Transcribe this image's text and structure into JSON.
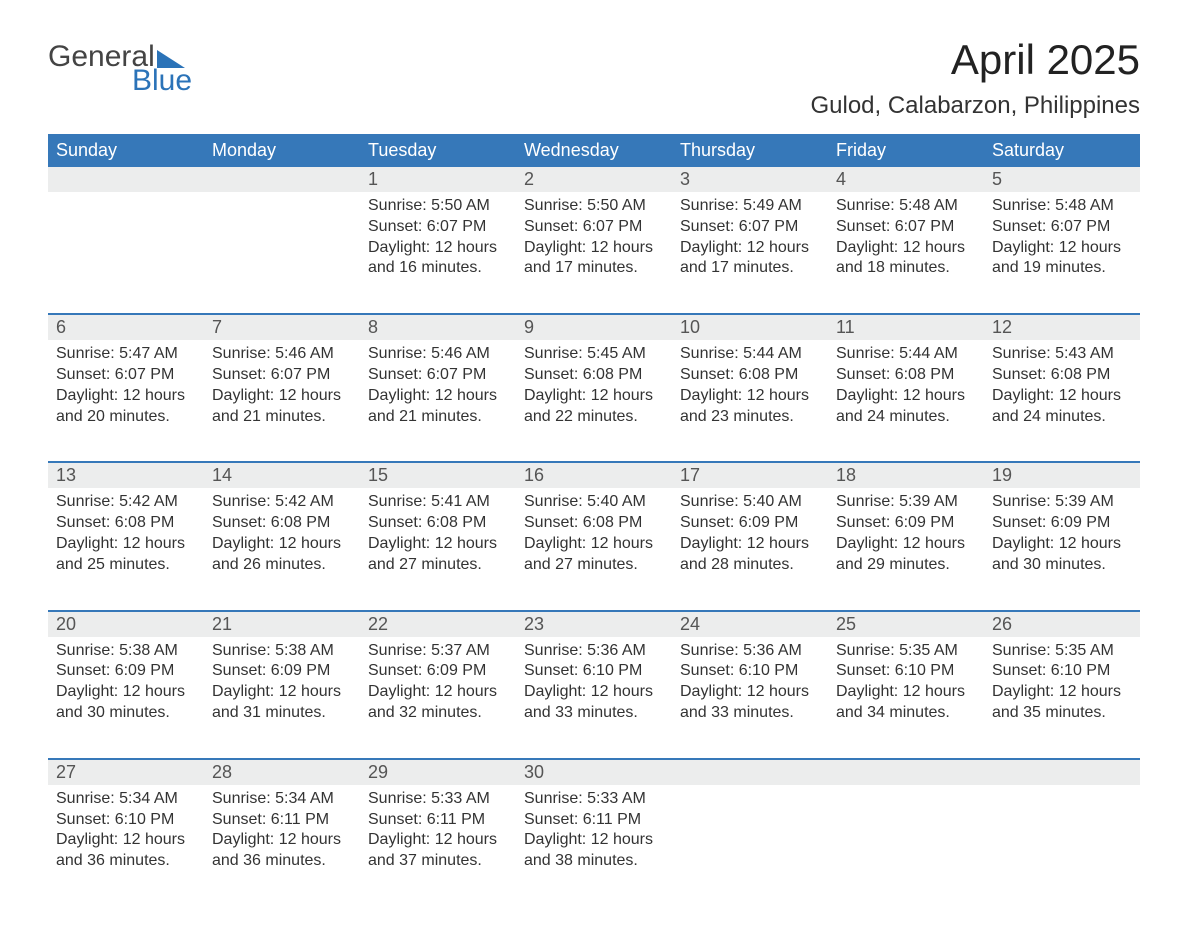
{
  "logo": {
    "general": "General",
    "blue": "Blue"
  },
  "title": "April 2025",
  "subtitle": "Gulod, Calabarzon, Philippines",
  "colors": {
    "header_bg": "#3678b9",
    "header_text": "#ffffff",
    "daynum_bg": "#eceded",
    "daynum_text": "#555555",
    "body_text": "#333333",
    "rule": "#3678b9",
    "logo_accent": "#2b73b8",
    "page_bg": "#ffffff"
  },
  "typography": {
    "title_fontsize": 42,
    "subtitle_fontsize": 24,
    "dow_fontsize": 18,
    "daynum_fontsize": 18,
    "body_fontsize": 16
  },
  "days_of_week": [
    "Sunday",
    "Monday",
    "Tuesday",
    "Wednesday",
    "Thursday",
    "Friday",
    "Saturday"
  ],
  "weeks": [
    [
      null,
      null,
      {
        "n": "1",
        "sunrise": "Sunrise: 5:50 AM",
        "sunset": "Sunset: 6:07 PM",
        "d1": "Daylight: 12 hours",
        "d2": "and 16 minutes."
      },
      {
        "n": "2",
        "sunrise": "Sunrise: 5:50 AM",
        "sunset": "Sunset: 6:07 PM",
        "d1": "Daylight: 12 hours",
        "d2": "and 17 minutes."
      },
      {
        "n": "3",
        "sunrise": "Sunrise: 5:49 AM",
        "sunset": "Sunset: 6:07 PM",
        "d1": "Daylight: 12 hours",
        "d2": "and 17 minutes."
      },
      {
        "n": "4",
        "sunrise": "Sunrise: 5:48 AM",
        "sunset": "Sunset: 6:07 PM",
        "d1": "Daylight: 12 hours",
        "d2": "and 18 minutes."
      },
      {
        "n": "5",
        "sunrise": "Sunrise: 5:48 AM",
        "sunset": "Sunset: 6:07 PM",
        "d1": "Daylight: 12 hours",
        "d2": "and 19 minutes."
      }
    ],
    [
      {
        "n": "6",
        "sunrise": "Sunrise: 5:47 AM",
        "sunset": "Sunset: 6:07 PM",
        "d1": "Daylight: 12 hours",
        "d2": "and 20 minutes."
      },
      {
        "n": "7",
        "sunrise": "Sunrise: 5:46 AM",
        "sunset": "Sunset: 6:07 PM",
        "d1": "Daylight: 12 hours",
        "d2": "and 21 minutes."
      },
      {
        "n": "8",
        "sunrise": "Sunrise: 5:46 AM",
        "sunset": "Sunset: 6:07 PM",
        "d1": "Daylight: 12 hours",
        "d2": "and 21 minutes."
      },
      {
        "n": "9",
        "sunrise": "Sunrise: 5:45 AM",
        "sunset": "Sunset: 6:08 PM",
        "d1": "Daylight: 12 hours",
        "d2": "and 22 minutes."
      },
      {
        "n": "10",
        "sunrise": "Sunrise: 5:44 AM",
        "sunset": "Sunset: 6:08 PM",
        "d1": "Daylight: 12 hours",
        "d2": "and 23 minutes."
      },
      {
        "n": "11",
        "sunrise": "Sunrise: 5:44 AM",
        "sunset": "Sunset: 6:08 PM",
        "d1": "Daylight: 12 hours",
        "d2": "and 24 minutes."
      },
      {
        "n": "12",
        "sunrise": "Sunrise: 5:43 AM",
        "sunset": "Sunset: 6:08 PM",
        "d1": "Daylight: 12 hours",
        "d2": "and 24 minutes."
      }
    ],
    [
      {
        "n": "13",
        "sunrise": "Sunrise: 5:42 AM",
        "sunset": "Sunset: 6:08 PM",
        "d1": "Daylight: 12 hours",
        "d2": "and 25 minutes."
      },
      {
        "n": "14",
        "sunrise": "Sunrise: 5:42 AM",
        "sunset": "Sunset: 6:08 PM",
        "d1": "Daylight: 12 hours",
        "d2": "and 26 minutes."
      },
      {
        "n": "15",
        "sunrise": "Sunrise: 5:41 AM",
        "sunset": "Sunset: 6:08 PM",
        "d1": "Daylight: 12 hours",
        "d2": "and 27 minutes."
      },
      {
        "n": "16",
        "sunrise": "Sunrise: 5:40 AM",
        "sunset": "Sunset: 6:08 PM",
        "d1": "Daylight: 12 hours",
        "d2": "and 27 minutes."
      },
      {
        "n": "17",
        "sunrise": "Sunrise: 5:40 AM",
        "sunset": "Sunset: 6:09 PM",
        "d1": "Daylight: 12 hours",
        "d2": "and 28 minutes."
      },
      {
        "n": "18",
        "sunrise": "Sunrise: 5:39 AM",
        "sunset": "Sunset: 6:09 PM",
        "d1": "Daylight: 12 hours",
        "d2": "and 29 minutes."
      },
      {
        "n": "19",
        "sunrise": "Sunrise: 5:39 AM",
        "sunset": "Sunset: 6:09 PM",
        "d1": "Daylight: 12 hours",
        "d2": "and 30 minutes."
      }
    ],
    [
      {
        "n": "20",
        "sunrise": "Sunrise: 5:38 AM",
        "sunset": "Sunset: 6:09 PM",
        "d1": "Daylight: 12 hours",
        "d2": "and 30 minutes."
      },
      {
        "n": "21",
        "sunrise": "Sunrise: 5:38 AM",
        "sunset": "Sunset: 6:09 PM",
        "d1": "Daylight: 12 hours",
        "d2": "and 31 minutes."
      },
      {
        "n": "22",
        "sunrise": "Sunrise: 5:37 AM",
        "sunset": "Sunset: 6:09 PM",
        "d1": "Daylight: 12 hours",
        "d2": "and 32 minutes."
      },
      {
        "n": "23",
        "sunrise": "Sunrise: 5:36 AM",
        "sunset": "Sunset: 6:10 PM",
        "d1": "Daylight: 12 hours",
        "d2": "and 33 minutes."
      },
      {
        "n": "24",
        "sunrise": "Sunrise: 5:36 AM",
        "sunset": "Sunset: 6:10 PM",
        "d1": "Daylight: 12 hours",
        "d2": "and 33 minutes."
      },
      {
        "n": "25",
        "sunrise": "Sunrise: 5:35 AM",
        "sunset": "Sunset: 6:10 PM",
        "d1": "Daylight: 12 hours",
        "d2": "and 34 minutes."
      },
      {
        "n": "26",
        "sunrise": "Sunrise: 5:35 AM",
        "sunset": "Sunset: 6:10 PM",
        "d1": "Daylight: 12 hours",
        "d2": "and 35 minutes."
      }
    ],
    [
      {
        "n": "27",
        "sunrise": "Sunrise: 5:34 AM",
        "sunset": "Sunset: 6:10 PM",
        "d1": "Daylight: 12 hours",
        "d2": "and 36 minutes."
      },
      {
        "n": "28",
        "sunrise": "Sunrise: 5:34 AM",
        "sunset": "Sunset: 6:11 PM",
        "d1": "Daylight: 12 hours",
        "d2": "and 36 minutes."
      },
      {
        "n": "29",
        "sunrise": "Sunrise: 5:33 AM",
        "sunset": "Sunset: 6:11 PM",
        "d1": "Daylight: 12 hours",
        "d2": "and 37 minutes."
      },
      {
        "n": "30",
        "sunrise": "Sunrise: 5:33 AM",
        "sunset": "Sunset: 6:11 PM",
        "d1": "Daylight: 12 hours",
        "d2": "and 38 minutes."
      },
      null,
      null,
      null
    ]
  ]
}
